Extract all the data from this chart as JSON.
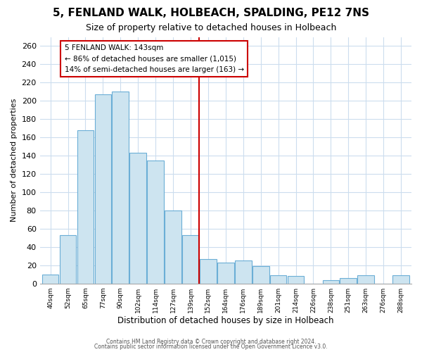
{
  "title": "5, FENLAND WALK, HOLBEACH, SPALDING, PE12 7NS",
  "subtitle": "Size of property relative to detached houses in Holbeach",
  "xlabel": "Distribution of detached houses by size in Holbeach",
  "ylabel": "Number of detached properties",
  "bar_labels": [
    "40sqm",
    "52sqm",
    "65sqm",
    "77sqm",
    "90sqm",
    "102sqm",
    "114sqm",
    "127sqm",
    "139sqm",
    "152sqm",
    "164sqm",
    "176sqm",
    "189sqm",
    "201sqm",
    "214sqm",
    "226sqm",
    "238sqm",
    "251sqm",
    "263sqm",
    "276sqm",
    "288sqm"
  ],
  "bar_heights": [
    10,
    53,
    168,
    207,
    210,
    143,
    135,
    80,
    53,
    27,
    23,
    25,
    19,
    9,
    8,
    0,
    4,
    6,
    9,
    0,
    9
  ],
  "bar_fill_color": "#cde4f0",
  "bar_edge_color": "#6baed6",
  "vline_color": "#cc0000",
  "vline_x": 8.5,
  "annotation_title": "5 FENLAND WALK: 143sqm",
  "annotation_line1": "← 86% of detached houses are smaller (1,015)",
  "annotation_line2": "14% of semi-detached houses are larger (163) →",
  "annotation_box_edge_color": "#cc0000",
  "ylim": [
    0,
    270
  ],
  "yticks": [
    0,
    20,
    40,
    60,
    80,
    100,
    120,
    140,
    160,
    180,
    200,
    220,
    240,
    260
  ],
  "footer1": "Contains HM Land Registry data © Crown copyright and database right 2024.",
  "footer2": "Contains public sector information licensed under the Open Government Licence v3.0.",
  "bg_color": "#ffffff",
  "grid_color": "#ccddee"
}
